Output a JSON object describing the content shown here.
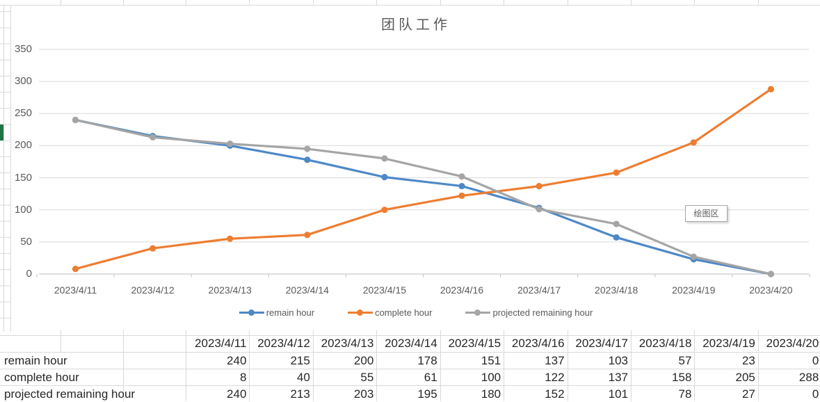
{
  "app": {
    "selection_color": "#217346",
    "grid_color": "#d9d9d9"
  },
  "chart_data": {
    "type": "line",
    "title": "团队工作",
    "categories": [
      "2023/4/11",
      "2023/4/12",
      "2023/4/13",
      "2023/4/14",
      "2023/4/15",
      "2023/4/16",
      "2023/4/17",
      "2023/4/18",
      "2023/4/19",
      "2023/4/20"
    ],
    "series": [
      {
        "name": "remain hour",
        "color": "#4d88c7",
        "values": [
          240,
          215,
          200,
          178,
          151,
          137,
          103,
          57,
          23,
          0
        ]
      },
      {
        "name": "complete hour",
        "color": "#ed7d31",
        "values": [
          8,
          40,
          55,
          61,
          100,
          122,
          137,
          158,
          205,
          288
        ]
      },
      {
        "name": "projected remaining hour",
        "color": "#a5a5a5",
        "values": [
          240,
          213,
          203,
          195,
          180,
          152,
          101,
          78,
          27,
          0
        ]
      }
    ],
    "ylim": [
      0,
      350
    ],
    "ytick_step": 50,
    "grid": true,
    "legend_position": "bottom",
    "axis_color": "#bfbfbf",
    "gridline_color": "#d9d9d9"
  },
  "chart_ui": {
    "tooltip": "绘图区"
  },
  "table": {
    "columns": [
      "2023/4/11",
      "2023/4/12",
      "2023/4/13",
      "2023/4/14",
      "2023/4/15",
      "2023/4/16",
      "2023/4/17",
      "2023/4/18",
      "2023/4/19",
      "2023/4/20"
    ],
    "rows": [
      {
        "label": "remain hour",
        "values": [
          "240",
          "215",
          "200",
          "178",
          "151",
          "137",
          "103",
          "57",
          "23",
          "0"
        ]
      },
      {
        "label": "complete hour",
        "values": [
          "8",
          "40",
          "55",
          "61",
          "100",
          "122",
          "137",
          "158",
          "205",
          "288"
        ]
      },
      {
        "label": "projected remaining hour",
        "values": [
          "240",
          "213",
          "203",
          "195",
          "180",
          "152",
          "101",
          "78",
          "27",
          "0"
        ]
      }
    ]
  }
}
